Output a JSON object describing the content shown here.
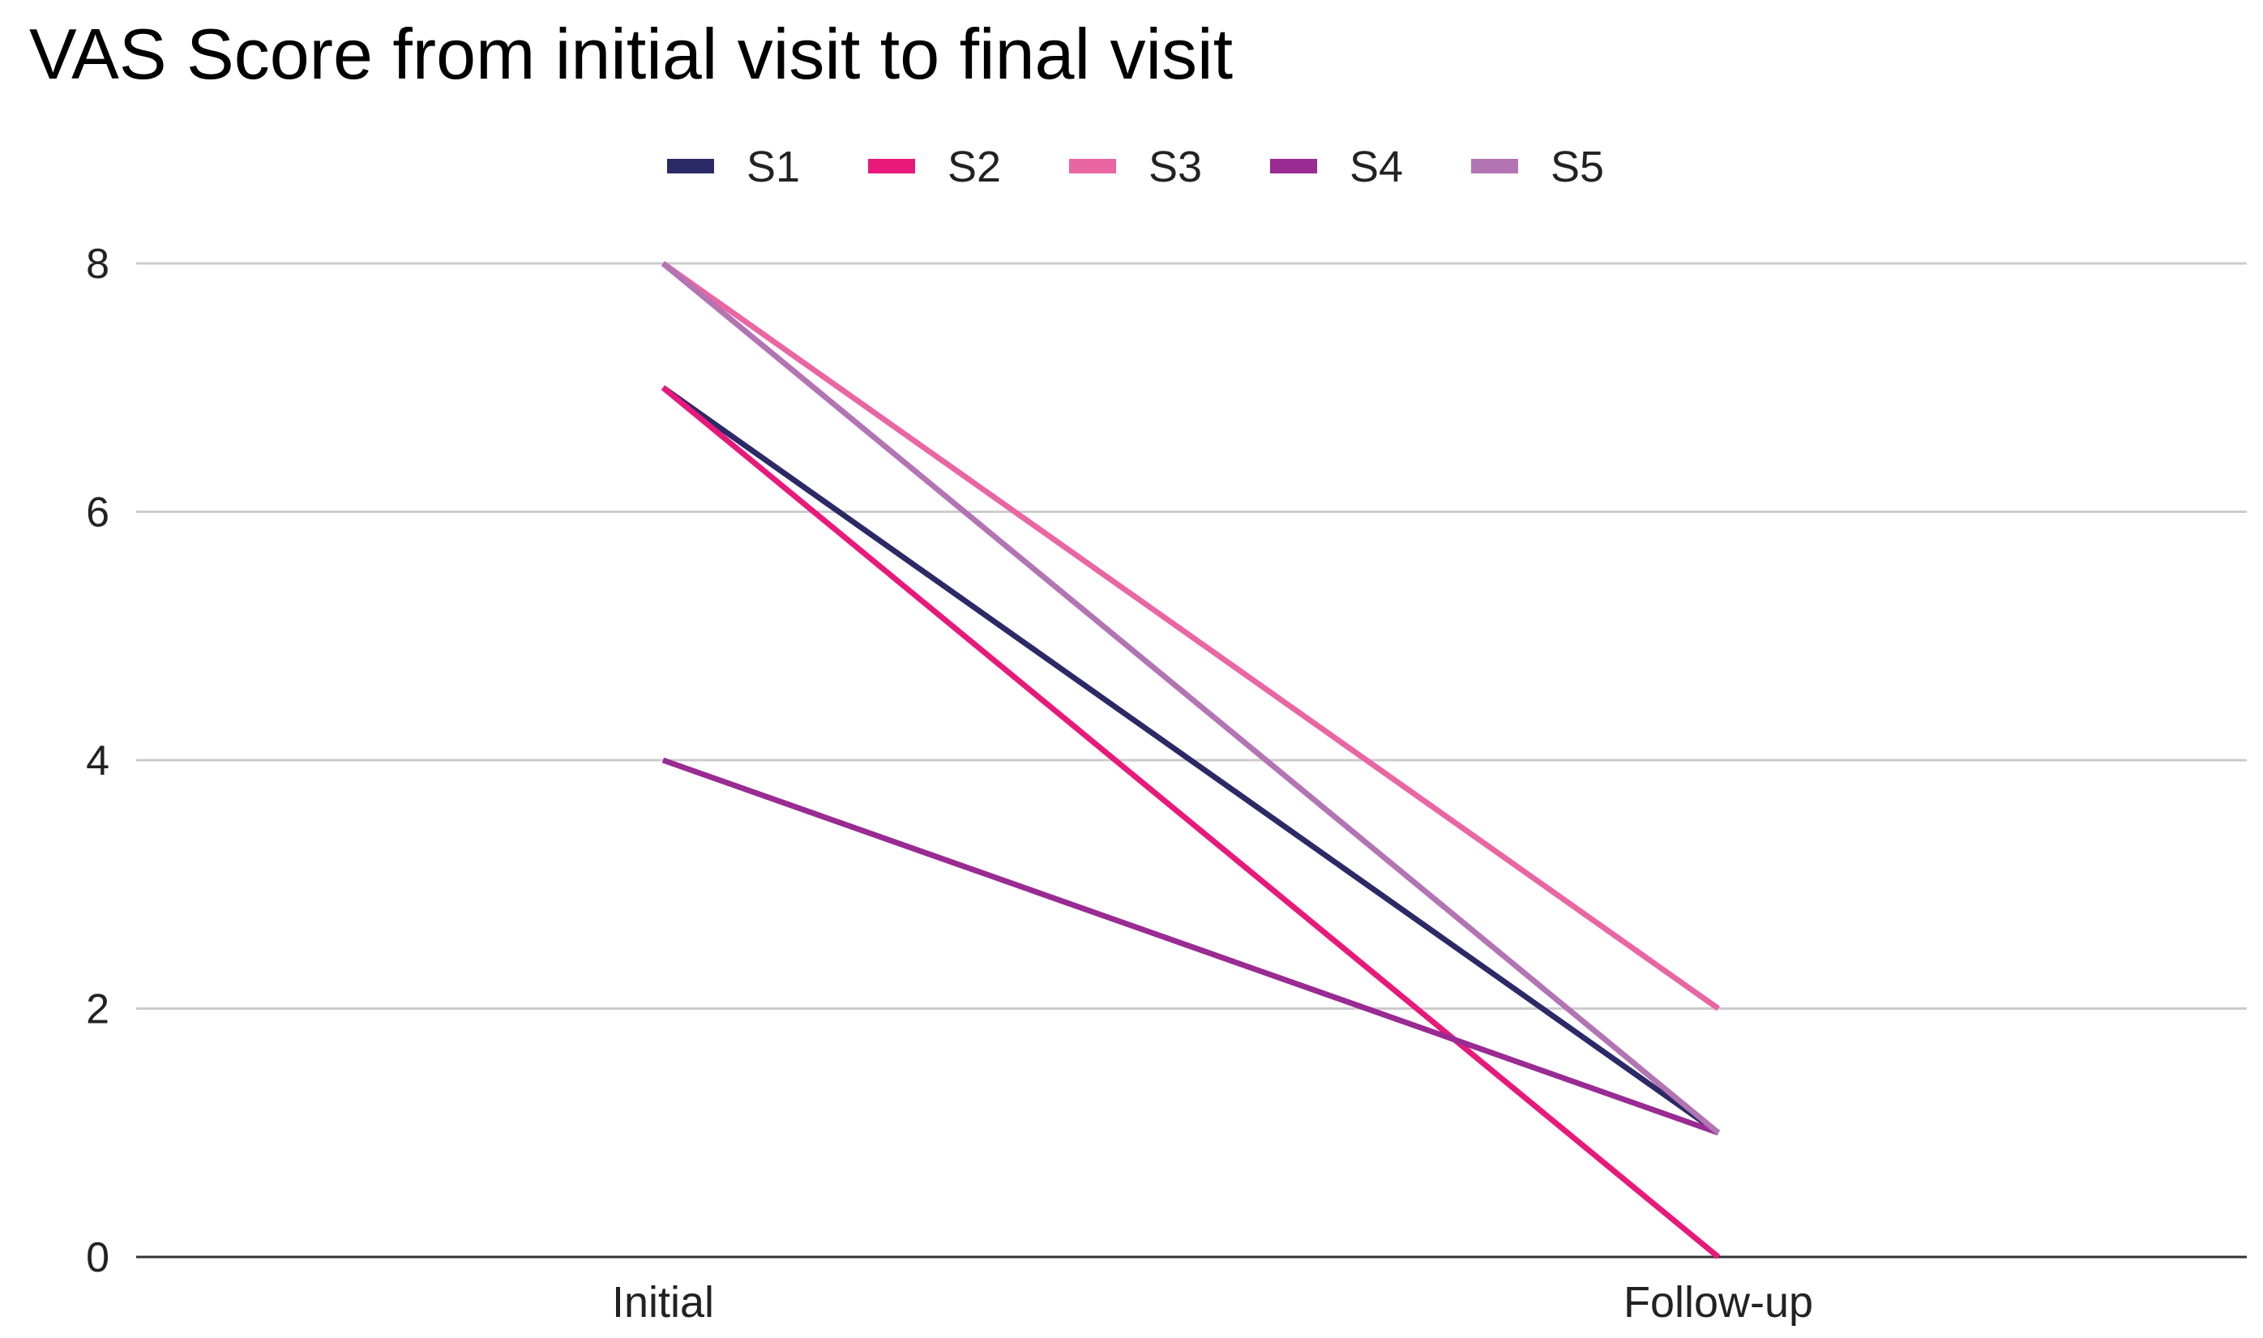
{
  "chart_data": {
    "type": "line",
    "title": "VAS Score from initial visit to final visit",
    "xlabel": "",
    "ylabel": "",
    "categories": [
      "Initial",
      "Follow-up"
    ],
    "ylim": [
      0,
      8
    ],
    "yticks": [
      "0",
      "2",
      "4",
      "6",
      "8"
    ],
    "grid": true,
    "legend_position": "top",
    "series": [
      {
        "name": "S1",
        "color": "#2b2a66",
        "values": [
          7,
          1
        ]
      },
      {
        "name": "S2",
        "color": "#e8197a",
        "values": [
          7,
          0
        ]
      },
      {
        "name": "S3",
        "color": "#e966a3",
        "values": [
          8,
          2
        ]
      },
      {
        "name": "S4",
        "color": "#992b93",
        "values": [
          4,
          1
        ]
      },
      {
        "name": "S5",
        "color": "#b374b3",
        "values": [
          8,
          1
        ]
      }
    ]
  }
}
